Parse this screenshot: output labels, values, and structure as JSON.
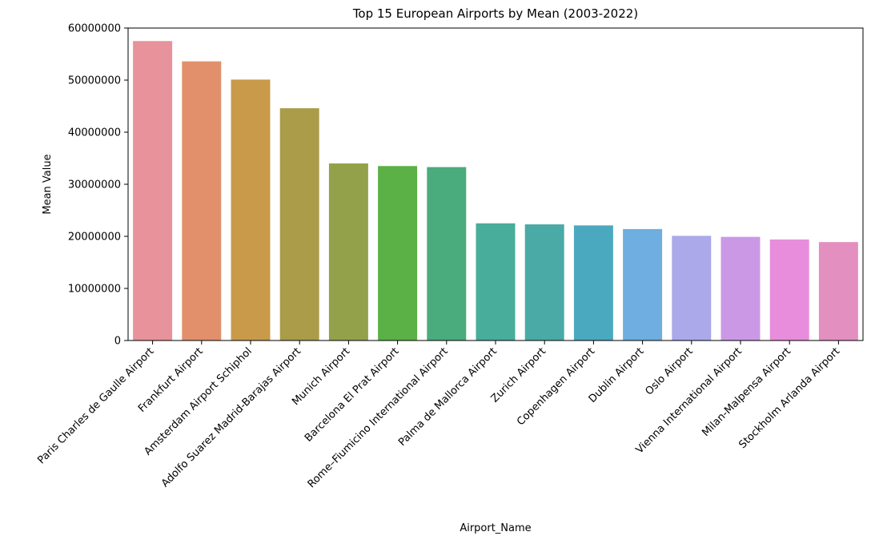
{
  "chart_data": {
    "type": "bar",
    "title": "Top 15 European Airports by Mean (2003-2022)",
    "xlabel": "Airport_Name",
    "ylabel": "Mean Value",
    "ylim": [
      0,
      60000000
    ],
    "yticks": [
      0,
      10000000,
      20000000,
      30000000,
      40000000,
      50000000,
      60000000
    ],
    "ytick_labels": [
      "0",
      "10000000",
      "20000000",
      "30000000",
      "40000000",
      "50000000",
      "60000000"
    ],
    "grid": false,
    "legend": "none",
    "categories": [
      "Paris Charles de Gaulle Airport",
      "Frankfurt Airport",
      "Amsterdam Airport Schiphol",
      "Adolfo Suarez Madrid-Barajas Airport",
      "Munich Airport",
      "Barcelona El Prat Airport",
      "Rome–Fiumicino International Airport",
      "Palma de Mallorca Airport",
      "Zurich Airport",
      "Copenhagen Airport",
      "Dublin Airport",
      "Oslo Airport",
      "Vienna International Airport",
      "Milan-Malpensa Airport",
      "Stockholm Arlanda Airport"
    ],
    "values": [
      57500000,
      53600000,
      50100000,
      44600000,
      34000000,
      33500000,
      33300000,
      22500000,
      22300000,
      22100000,
      21400000,
      20100000,
      19900000,
      19400000,
      18900000
    ],
    "colors": [
      "#e8929c",
      "#e2906b",
      "#c89a4a",
      "#aa9c48",
      "#93a24a",
      "#5bb046",
      "#4aab7c",
      "#48ad9a",
      "#49aaa6",
      "#4aa9bf",
      "#6eaee0",
      "#aba9ea",
      "#cb98e6",
      "#e78ddb",
      "#e38fbf"
    ]
  }
}
